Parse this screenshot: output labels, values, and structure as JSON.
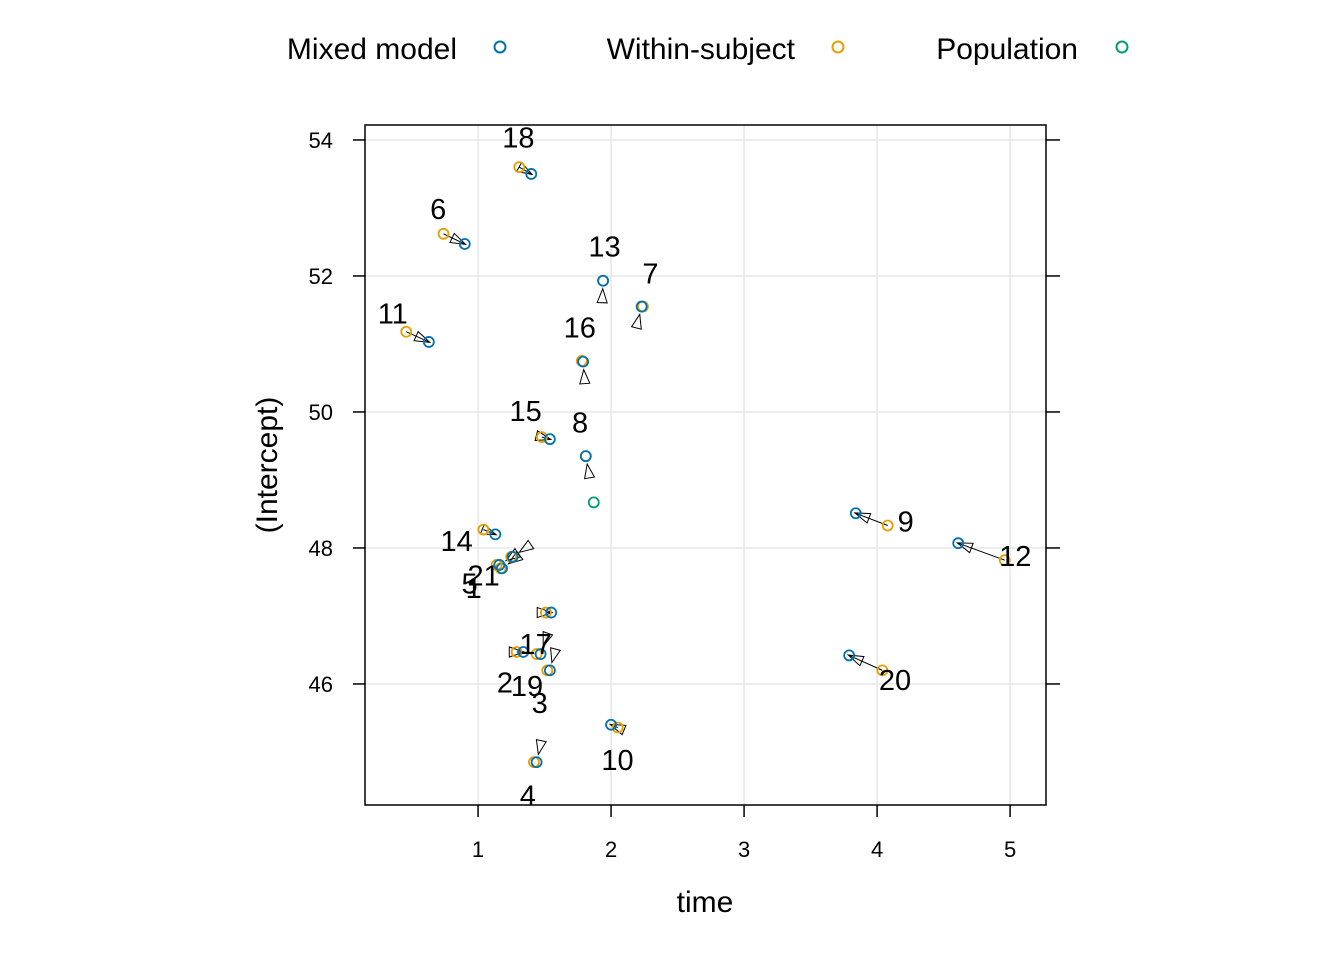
{
  "chart_data": {
    "type": "scatter",
    "xlabel": "time",
    "ylabel": "(Intercept)",
    "xlim": [
      0.15,
      5.27
    ],
    "ylim": [
      44.22,
      54.22
    ],
    "x_ticks": [
      "1",
      "2",
      "3",
      "4",
      "5"
    ],
    "y_ticks": [
      "46",
      "48",
      "50",
      "52",
      "54"
    ],
    "grid": true,
    "legend_position": "top",
    "series": [
      {
        "name": "Mixed model",
        "color": "#0072B2"
      },
      {
        "name": "Within-subject",
        "color": "#E69F00"
      },
      {
        "name": "Population",
        "color": "#009E73"
      }
    ],
    "population": {
      "x": 1.87,
      "y": 48.67
    },
    "subjects": [
      {
        "label": "1",
        "within": [
          1.17,
          47.7
        ],
        "mixed": [
          1.18,
          47.7
        ]
      },
      {
        "label": "2",
        "within": [
          1.29,
          46.47
        ],
        "mixed": [
          1.34,
          46.47
        ]
      },
      {
        "label": "3",
        "within": [
          1.52,
          46.2
        ],
        "mixed": [
          1.54,
          46.2
        ]
      },
      {
        "label": "4",
        "within": [
          1.42,
          44.85
        ],
        "mixed": [
          1.44,
          44.85
        ]
      },
      {
        "label": "5",
        "within": [
          1.14,
          47.75
        ],
        "mixed": [
          1.16,
          47.75
        ]
      },
      {
        "label": "6",
        "within": [
          0.74,
          52.62
        ],
        "mixed": [
          0.9,
          52.47
        ]
      },
      {
        "label": "7",
        "within": [
          2.24,
          51.55
        ],
        "mixed": [
          2.23,
          51.55
        ]
      },
      {
        "label": "8",
        "within": [
          1.81,
          49.35
        ],
        "mixed": [
          1.81,
          49.35
        ]
      },
      {
        "label": "9",
        "within": [
          4.08,
          48.33
        ],
        "mixed": [
          3.84,
          48.51
        ]
      },
      {
        "label": "10",
        "within": [
          2.05,
          45.36
        ],
        "mixed": [
          2.0,
          45.4
        ]
      },
      {
        "label": "11",
        "within": [
          0.46,
          51.18
        ],
        "mixed": [
          0.63,
          51.03
        ]
      },
      {
        "label": "12",
        "within": [
          4.96,
          47.82
        ],
        "mixed": [
          4.61,
          48.07
        ]
      },
      {
        "label": "13",
        "within": [
          1.94,
          51.93
        ],
        "mixed": [
          1.94,
          51.93
        ]
      },
      {
        "label": "14",
        "within": [
          1.04,
          48.27
        ],
        "mixed": [
          1.13,
          48.2
        ]
      },
      {
        "label": "15",
        "within": [
          1.48,
          49.63
        ],
        "mixed": [
          1.54,
          49.6
        ]
      },
      {
        "label": "16",
        "within": [
          1.78,
          50.75
        ],
        "mixed": [
          1.79,
          50.74
        ]
      },
      {
        "label": "17",
        "within": [
          1.51,
          47.05
        ],
        "mixed": [
          1.55,
          47.05
        ]
      },
      {
        "label": "18",
        "within": [
          1.31,
          53.6
        ],
        "mixed": [
          1.4,
          53.5
        ]
      },
      {
        "label": "19",
        "within": [
          1.44,
          46.44
        ],
        "mixed": [
          1.47,
          46.44
        ]
      },
      {
        "label": "20",
        "within": [
          4.04,
          46.2
        ],
        "mixed": [
          3.79,
          46.42
        ]
      },
      {
        "label": "21",
        "within": [
          1.25,
          47.87
        ],
        "mixed": [
          1.26,
          47.87
        ]
      }
    ]
  }
}
